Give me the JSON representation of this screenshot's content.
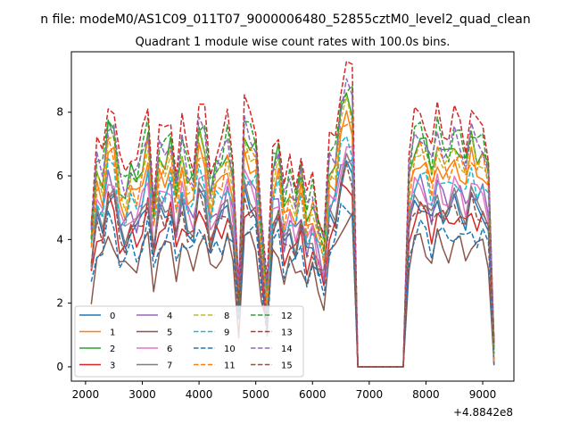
{
  "figure": {
    "suptitle": "n file: modeM0/AS1C09_011T07_9000006480_52855cztM0_level2_quad_clean",
    "title": "Quadrant 1 module wise count rates with 100.0s bins."
  },
  "chart_data": {
    "type": "line",
    "title": "Quadrant 1 module wise count rates with 100.0s bins.",
    "xlabel": "",
    "ylabel": "",
    "x_offset_label": "+4.8842e8",
    "xlim": [
      1750,
      9550
    ],
    "ylim": [
      -0.45,
      9.9
    ],
    "xticks": [
      2000,
      3000,
      4000,
      5000,
      6000,
      7000,
      8000,
      9000
    ],
    "yticks": [
      0,
      2,
      4,
      6,
      8
    ],
    "legend": "lower-left",
    "grid": false,
    "x": [
      2100,
      2200,
      2300,
      2400,
      2500,
      2600,
      2700,
      2800,
      2900,
      3000,
      3100,
      3200,
      3300,
      3400,
      3500,
      3600,
      3700,
      3800,
      3900,
      4000,
      4100,
      4200,
      4300,
      4400,
      4500,
      4600,
      4700,
      4800,
      4900,
      5000,
      5100,
      5200,
      5300,
      5400,
      5500,
      5600,
      5700,
      5800,
      5900,
      6000,
      6100,
      6200,
      6300,
      6400,
      6500,
      6600,
      6700,
      6800,
      6900,
      7000,
      7100,
      7200,
      7300,
      7400,
      7500,
      7600,
      7700,
      7800,
      7900,
      8000,
      8100,
      8200,
      8300,
      8400,
      8500,
      8600,
      8700,
      8800,
      8900,
      9000,
      9100,
      9200
    ],
    "profile": [
      0.55,
      0.82,
      0.78,
      0.99,
      0.95,
      0.75,
      0.72,
      0.8,
      0.76,
      0.85,
      0.97,
      0.64,
      0.87,
      0.86,
      0.93,
      0.72,
      0.9,
      0.79,
      0.76,
      0.97,
      0.93,
      0.72,
      0.81,
      0.83,
      0.92,
      0.78,
      0.3,
      0.97,
      0.93,
      0.9,
      0.56,
      0.28,
      0.82,
      0.88,
      0.66,
      0.75,
      0.68,
      0.8,
      0.62,
      0.7,
      0.58,
      0.5,
      0.83,
      0.85,
      1.05,
      1.12,
      1.08,
      0.0,
      0.0,
      0.0,
      0.0,
      0.0,
      0.0,
      0.0,
      0.0,
      0.0,
      0.78,
      0.92,
      0.95,
      0.9,
      0.8,
      0.95,
      0.88,
      0.86,
      0.93,
      0.9,
      0.83,
      0.95,
      0.88,
      0.9,
      0.8,
      0.07
    ],
    "series": [
      {
        "name": "0",
        "color": "#1f77b4",
        "dashed": false,
        "scale": 5.5
      },
      {
        "name": "1",
        "color": "#ff7f0e",
        "dashed": false,
        "scale": 6.9
      },
      {
        "name": "2",
        "color": "#2ca02c",
        "dashed": false,
        "scale": 7.6
      },
      {
        "name": "3",
        "color": "#d62728",
        "dashed": false,
        "scale": 5.2
      },
      {
        "name": "4",
        "color": "#9467bd",
        "dashed": false,
        "scale": 6.0
      },
      {
        "name": "5",
        "color": "#8c564b",
        "dashed": false,
        "scale": 4.2
      },
      {
        "name": "6",
        "color": "#e377c2",
        "dashed": false,
        "scale": 6.1
      },
      {
        "name": "7",
        "color": "#7f7f7f",
        "dashed": false,
        "scale": 5.7
      },
      {
        "name": "8",
        "color": "#bcbd22",
        "dashed": true,
        "scale": 7.3
      },
      {
        "name": "9",
        "color": "#17becf",
        "dashed": true,
        "scale": 6.4
      },
      {
        "name": "10",
        "color": "#1f77b4",
        "dashed": true,
        "scale": 4.6
      },
      {
        "name": "11",
        "color": "#ff7f0e",
        "dashed": true,
        "scale": 7.1
      },
      {
        "name": "12",
        "color": "#2ca02c",
        "dashed": true,
        "scale": 7.9
      },
      {
        "name": "13",
        "color": "#d62728",
        "dashed": true,
        "scale": 8.5
      },
      {
        "name": "14",
        "color": "#9467bd",
        "dashed": true,
        "scale": 7.8
      },
      {
        "name": "15",
        "color": "#8c564b",
        "dashed": true,
        "scale": 5.4
      }
    ]
  }
}
